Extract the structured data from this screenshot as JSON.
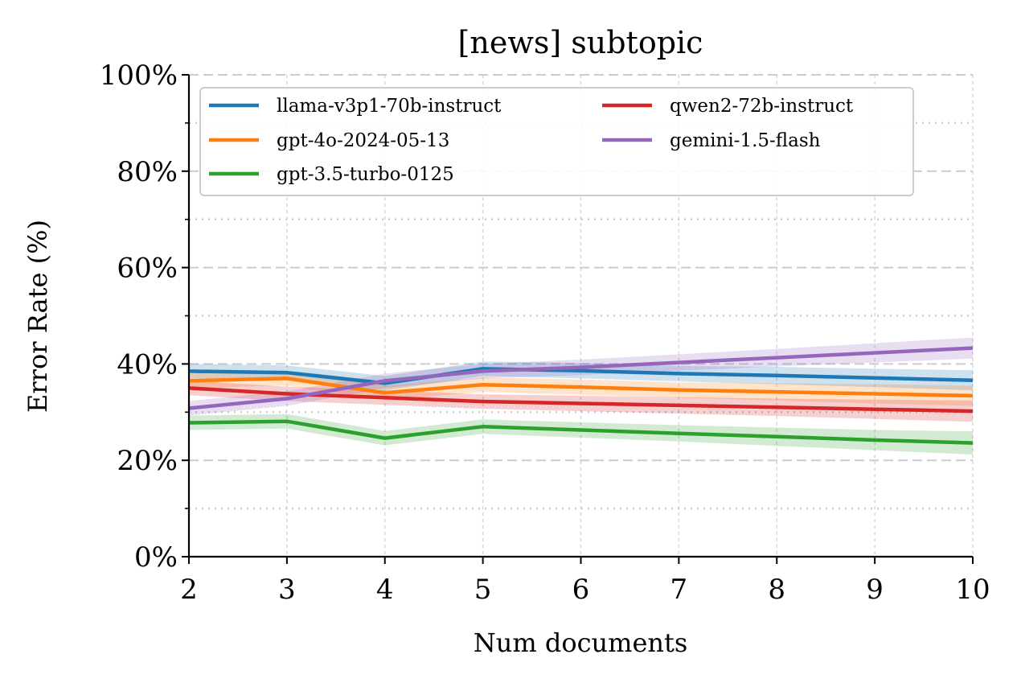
{
  "chart_data": {
    "type": "line",
    "title": "[news] subtopic",
    "xlabel": "Num documents",
    "ylabel": "Error Rate (%)",
    "x": [
      2,
      3,
      4,
      5,
      6,
      7,
      8,
      9,
      10
    ],
    "xlim": [
      2,
      10
    ],
    "ylim": [
      0,
      100
    ],
    "x_ticks": [
      "2",
      "3",
      "4",
      "5",
      "6",
      "7",
      "8",
      "9",
      "10"
    ],
    "y_ticks": [
      "0%",
      "20%",
      "40%",
      "60%",
      "80%",
      "100%"
    ],
    "y_tick_values": [
      0,
      20,
      40,
      60,
      80,
      100
    ],
    "grid": true,
    "legend_placement": "top-left",
    "legend_columns": 2,
    "series": [
      {
        "name": "llama-v3p1-70b-instruct",
        "color": "#1f77b4",
        "values": [
          38.5,
          38.2,
          36.0,
          39.0,
          38.6,
          38.0,
          37.6,
          37.1,
          36.6
        ],
        "lower": [
          37.0,
          36.7,
          34.5,
          37.5,
          37.0,
          36.4,
          35.8,
          35.2,
          34.5
        ],
        "upper": [
          40.0,
          39.7,
          37.5,
          40.5,
          40.2,
          39.6,
          39.4,
          39.0,
          38.7
        ]
      },
      {
        "name": "gpt-4o-2024-05-13",
        "color": "#ff7f0e",
        "values": [
          36.5,
          37.0,
          34.0,
          35.7,
          35.2,
          34.6,
          34.2,
          33.8,
          33.4
        ],
        "lower": [
          35.0,
          35.5,
          32.5,
          34.2,
          33.6,
          33.0,
          32.4,
          31.8,
          31.3
        ],
        "upper": [
          38.0,
          38.5,
          35.5,
          37.2,
          36.8,
          36.2,
          36.0,
          35.8,
          35.5
        ]
      },
      {
        "name": "gpt-3.5-turbo-0125",
        "color": "#2ca02c",
        "values": [
          27.8,
          28.1,
          24.6,
          27.0,
          26.3,
          25.6,
          24.9,
          24.2,
          23.6
        ],
        "lower": [
          26.3,
          26.6,
          23.1,
          25.5,
          24.7,
          23.9,
          23.0,
          22.1,
          21.2
        ],
        "upper": [
          29.3,
          29.6,
          26.1,
          28.5,
          27.9,
          27.3,
          26.8,
          26.3,
          26.0
        ]
      },
      {
        "name": "qwen2-72b-instruct",
        "color": "#d62728",
        "values": [
          35.0,
          33.8,
          33.0,
          32.2,
          31.8,
          31.4,
          31.0,
          30.6,
          30.2
        ],
        "lower": [
          33.5,
          32.3,
          31.5,
          30.7,
          30.2,
          29.7,
          29.2,
          28.6,
          28.0
        ],
        "upper": [
          36.5,
          35.3,
          34.5,
          33.7,
          33.4,
          33.1,
          32.8,
          32.6,
          32.4
        ]
      },
      {
        "name": "gemini-1.5-flash",
        "color": "#9467bd",
        "values": [
          30.8,
          32.8,
          36.5,
          38.5,
          39.3,
          40.3,
          41.3,
          42.3,
          43.3
        ],
        "lower": [
          29.3,
          31.3,
          35.0,
          37.0,
          37.7,
          38.6,
          39.5,
          40.3,
          41.1
        ],
        "upper": [
          32.3,
          34.3,
          38.0,
          40.0,
          40.9,
          42.0,
          43.1,
          44.3,
          45.5
        ]
      }
    ]
  }
}
